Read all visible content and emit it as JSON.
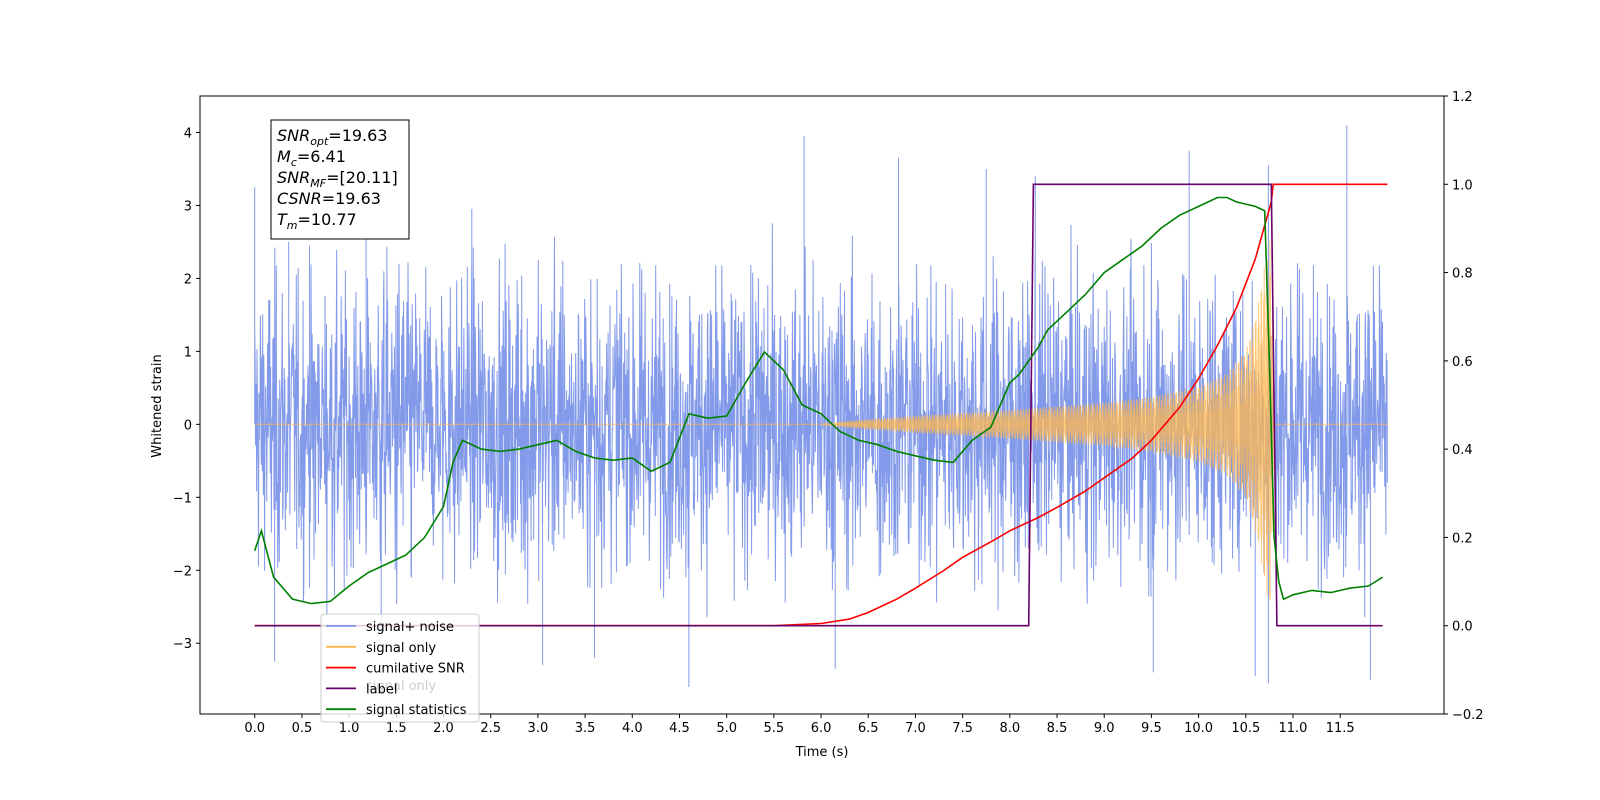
{
  "chart_data": {
    "type": "line",
    "xlabel": "Time (s)",
    "ylabel": "Whitened strain",
    "xlim": [
      -0.58,
      12.6
    ],
    "ylim_left": [
      -3.97,
      4.5
    ],
    "ylim_right": [
      -0.2,
      1.2
    ],
    "x_ticks": [
      "0.0",
      "0.5",
      "1.0",
      "1.5",
      "2.0",
      "2.5",
      "3.0",
      "3.5",
      "4.0",
      "4.5",
      "5.0",
      "5.5",
      "6.0",
      "6.5",
      "7.0",
      "7.5",
      "8.0",
      "8.5",
      "9.0",
      "9.5",
      "10.0",
      "10.5",
      "11.0",
      "11.5"
    ],
    "y_ticks_left": [
      "−3",
      "−2",
      "−1",
      "0",
      "1",
      "2",
      "3",
      "4"
    ],
    "y_ticks_right": [
      "−0.2",
      "0.0",
      "0.2",
      "0.4",
      "0.6",
      "0.8",
      "1.0",
      "1.2"
    ],
    "annotation": {
      "lines": [
        {
          "base": "SNR",
          "sub": "opt",
          "value": "=19.63"
        },
        {
          "base": "M",
          "sub": "c",
          "value": "=6.41"
        },
        {
          "base": "SNR",
          "sub": "MF",
          "value": "=[20.11]"
        },
        {
          "base": "CSNR",
          "sub": "",
          "value": "=19.63"
        },
        {
          "base": "T",
          "sub": "m",
          "value": "=10.77"
        }
      ]
    },
    "legend": {
      "placement": "lower-left",
      "entries": [
        {
          "label": "signal+ noise",
          "color": "#7b95e8"
        },
        {
          "label": "signal only",
          "color": "#ffb74d"
        },
        {
          "label": "cumilative SNR",
          "color": "#ff0000"
        },
        {
          "label": "label",
          "color": "#6a006a"
        },
        {
          "label": "signal statistics",
          "color": "#008000"
        }
      ],
      "hidden_label_behind": "signal only"
    },
    "series": [
      {
        "name": "signal+ noise",
        "axis": "left",
        "color": "#7b95e8",
        "kind": "noise",
        "x_range": [
          0.0,
          12.0
        ],
        "envelope_abs": 2.5,
        "peaks": [
          [
            0.0,
            3.25
          ],
          [
            0.36,
            2.5
          ],
          [
            0.58,
            2.45
          ],
          [
            1.18,
            2.9
          ],
          [
            2.3,
            2.95
          ],
          [
            5.82,
            3.95
          ],
          [
            6.82,
            3.65
          ],
          [
            7.75,
            3.5
          ],
          [
            8.27,
            3.4
          ],
          [
            9.9,
            3.75
          ],
          [
            10.74,
            3.55
          ],
          [
            11.57,
            4.1
          ]
        ],
        "troughs": [
          [
            0.21,
            -3.25
          ],
          [
            1.34,
            -2.85
          ],
          [
            3.05,
            -3.3
          ],
          [
            3.6,
            -3.2
          ],
          [
            4.6,
            -3.6
          ],
          [
            6.15,
            -3.35
          ],
          [
            9.52,
            -3.4
          ],
          [
            10.6,
            -3.45
          ],
          [
            10.74,
            -3.55
          ],
          [
            11.82,
            -3.5
          ]
        ]
      },
      {
        "name": "signal only",
        "axis": "left",
        "color": "#ffb74d",
        "kind": "chirp",
        "x_range": [
          0.0,
          12.0
        ],
        "amplitude_envelope": [
          [
            0.0,
            0.0
          ],
          [
            6.0,
            0.0
          ],
          [
            6.3,
            0.05
          ],
          [
            7.0,
            0.12
          ],
          [
            8.0,
            0.2
          ],
          [
            8.5,
            0.25
          ],
          [
            9.0,
            0.3
          ],
          [
            9.5,
            0.38
          ],
          [
            10.0,
            0.52
          ],
          [
            10.3,
            0.7
          ],
          [
            10.5,
            1.0
          ],
          [
            10.62,
            1.55
          ],
          [
            10.7,
            2.2
          ],
          [
            10.77,
            2.6
          ],
          [
            10.8,
            0.0
          ],
          [
            12.0,
            0.0
          ]
        ]
      },
      {
        "name": "cumilative SNR",
        "axis": "right",
        "color": "#ff0000",
        "x": [
          0.0,
          5.5,
          6.0,
          6.3,
          6.5,
          6.8,
          7.0,
          7.3,
          7.5,
          7.8,
          8.0,
          8.3,
          8.5,
          8.8,
          9.0,
          9.3,
          9.5,
          9.8,
          10.0,
          10.2,
          10.4,
          10.6,
          10.77,
          10.79,
          12.0
        ],
        "y": [
          0.0,
          0.0,
          0.005,
          0.015,
          0.03,
          0.06,
          0.085,
          0.125,
          0.155,
          0.19,
          0.215,
          0.245,
          0.268,
          0.305,
          0.335,
          0.38,
          0.42,
          0.495,
          0.56,
          0.635,
          0.72,
          0.83,
          0.96,
          1.0,
          1.0
        ]
      },
      {
        "name": "label",
        "axis": "right",
        "color": "#6a006a",
        "x": [
          0.0,
          8.2,
          8.25,
          10.77,
          10.83,
          11.95
        ],
        "y": [
          0.0,
          0.0,
          1.0,
          1.0,
          0.0,
          0.0
        ]
      },
      {
        "name": "signal statistics",
        "axis": "right",
        "color": "#008000",
        "x": [
          0.0,
          0.07,
          0.2,
          0.4,
          0.6,
          0.8,
          1.0,
          1.2,
          1.4,
          1.6,
          1.8,
          2.0,
          2.1,
          2.2,
          2.3,
          2.4,
          2.6,
          2.8,
          3.0,
          3.2,
          3.4,
          3.6,
          3.8,
          4.0,
          4.2,
          4.4,
          4.6,
          4.8,
          5.0,
          5.2,
          5.4,
          5.6,
          5.8,
          6.0,
          6.2,
          6.4,
          6.6,
          6.8,
          7.0,
          7.2,
          7.4,
          7.6,
          7.8,
          8.0,
          8.1,
          8.2,
          8.3,
          8.4,
          8.6,
          8.8,
          9.0,
          9.2,
          9.4,
          9.6,
          9.8,
          10.0,
          10.2,
          10.3,
          10.4,
          10.5,
          10.6,
          10.7,
          10.75,
          10.8,
          10.85,
          10.9,
          11.0,
          11.2,
          11.4,
          11.6,
          11.8,
          11.95
        ],
        "y": [
          0.17,
          0.215,
          0.11,
          0.06,
          0.05,
          0.055,
          0.09,
          0.12,
          0.14,
          0.16,
          0.2,
          0.27,
          0.37,
          0.42,
          0.41,
          0.4,
          0.395,
          0.4,
          0.41,
          0.42,
          0.395,
          0.38,
          0.375,
          0.38,
          0.35,
          0.37,
          0.48,
          0.47,
          0.475,
          0.55,
          0.62,
          0.58,
          0.5,
          0.48,
          0.44,
          0.42,
          0.41,
          0.395,
          0.385,
          0.375,
          0.37,
          0.42,
          0.45,
          0.55,
          0.57,
          0.6,
          0.63,
          0.67,
          0.71,
          0.75,
          0.8,
          0.83,
          0.86,
          0.9,
          0.93,
          0.95,
          0.97,
          0.97,
          0.96,
          0.955,
          0.95,
          0.94,
          0.6,
          0.2,
          0.1,
          0.06,
          0.07,
          0.08,
          0.075,
          0.085,
          0.09,
          0.11
        ]
      }
    ]
  }
}
